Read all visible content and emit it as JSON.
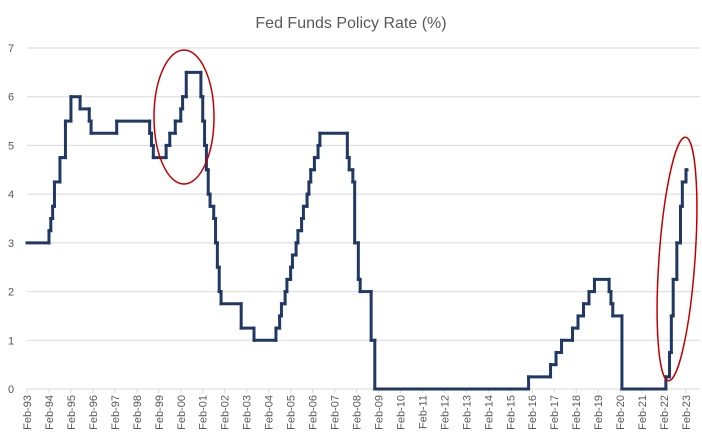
{
  "chart_data": {
    "type": "line",
    "title": "Fed Funds Policy Rate (%)",
    "step": true,
    "color": "#1f3864",
    "grid": true,
    "x": [
      "1993-02",
      "1994-02",
      "1994-03",
      "1994-04",
      "1994-05",
      "1994-08",
      "1994-11",
      "1995-02",
      "1995-07",
      "1995-12",
      "1996-01",
      "1997-03",
      "1998-09",
      "1998-10",
      "1998-11",
      "1999-06",
      "1999-08",
      "1999-11",
      "2000-02",
      "2000-03",
      "2000-05",
      "2001-01",
      "2001-02",
      "2001-03",
      "2001-04",
      "2001-05",
      "2001-06",
      "2001-08",
      "2001-09",
      "2001-10",
      "2001-11",
      "2001-12",
      "2002-11",
      "2003-06",
      "2004-06",
      "2004-08",
      "2004-09",
      "2004-11",
      "2004-12",
      "2005-02",
      "2005-03",
      "2005-05",
      "2005-06",
      "2005-08",
      "2005-09",
      "2005-11",
      "2005-12",
      "2006-01",
      "2006-03",
      "2006-05",
      "2006-06",
      "2007-09",
      "2007-10",
      "2007-12",
      "2008-01",
      "2008-03",
      "2008-04",
      "2008-10",
      "2008-12",
      "2015-12",
      "2016-12",
      "2017-03",
      "2017-06",
      "2017-12",
      "2018-03",
      "2018-06",
      "2018-09",
      "2018-12",
      "2019-08",
      "2019-09",
      "2019-10",
      "2020-03",
      "2022-03",
      "2022-05",
      "2022-06",
      "2022-07",
      "2022-09",
      "2022-11",
      "2022-12",
      "2023-02"
    ],
    "values": [
      3.0,
      3.25,
      3.5,
      3.75,
      4.25,
      4.75,
      5.5,
      6.0,
      5.75,
      5.5,
      5.25,
      5.5,
      5.25,
      5.0,
      4.75,
      5.0,
      5.25,
      5.5,
      5.75,
      6.0,
      6.5,
      6.0,
      5.5,
      5.0,
      4.5,
      4.0,
      3.75,
      3.5,
      3.0,
      2.5,
      2.0,
      1.75,
      1.25,
      1.0,
      1.25,
      1.5,
      1.75,
      2.0,
      2.25,
      2.5,
      2.75,
      3.0,
      3.25,
      3.5,
      3.75,
      4.0,
      4.25,
      4.5,
      4.75,
      5.0,
      5.25,
      4.75,
      4.5,
      4.25,
      3.0,
      2.25,
      2.0,
      1.0,
      0,
      0.25,
      0.5,
      0.75,
      1.0,
      1.25,
      1.5,
      1.75,
      2.0,
      2.25,
      2.0,
      1.75,
      1.5,
      0,
      0.25,
      0.75,
      1.5,
      2.25,
      3.0,
      3.75,
      4.25,
      4.5
    ],
    "xlim": [
      "1993-02",
      "2023-02"
    ],
    "xticks": [
      {
        "value": "1993-02",
        "label": "Feb-93"
      },
      {
        "value": "1994-02",
        "label": "Feb-94"
      },
      {
        "value": "1995-02",
        "label": "Feb-95"
      },
      {
        "value": "1996-02",
        "label": "Feb-96"
      },
      {
        "value": "1997-02",
        "label": "Feb-97"
      },
      {
        "value": "1998-02",
        "label": "Feb-98"
      },
      {
        "value": "1999-02",
        "label": "Feb-99"
      },
      {
        "value": "2000-02",
        "label": "Feb-00"
      },
      {
        "value": "2001-02",
        "label": "Feb-01"
      },
      {
        "value": "2002-02",
        "label": "Feb-02"
      },
      {
        "value": "2003-02",
        "label": "Feb-03"
      },
      {
        "value": "2004-02",
        "label": "Feb-04"
      },
      {
        "value": "2005-02",
        "label": "Feb-05"
      },
      {
        "value": "2006-02",
        "label": "Feb-06"
      },
      {
        "value": "2007-02",
        "label": "Feb-07"
      },
      {
        "value": "2008-02",
        "label": "Feb-08"
      },
      {
        "value": "2009-02",
        "label": "Feb-09"
      },
      {
        "value": "2010-02",
        "label": "Feb-10"
      },
      {
        "value": "2011-02",
        "label": "Feb-11"
      },
      {
        "value": "2012-02",
        "label": "Feb-12"
      },
      {
        "value": "2013-02",
        "label": "Feb-13"
      },
      {
        "value": "2014-02",
        "label": "Feb-14"
      },
      {
        "value": "2015-02",
        "label": "Feb-15"
      },
      {
        "value": "2016-02",
        "label": "Feb-16"
      },
      {
        "value": "2017-02",
        "label": "Feb-17"
      },
      {
        "value": "2018-02",
        "label": "Feb-18"
      },
      {
        "value": "2019-02",
        "label": "Feb-19"
      },
      {
        "value": "2020-02",
        "label": "Feb-20"
      },
      {
        "value": "2021-02",
        "label": "Feb-21"
      },
      {
        "value": "2022-02",
        "label": "Feb-22"
      },
      {
        "value": "2023-02",
        "label": "Feb-23"
      }
    ],
    "ylim": [
      0,
      7
    ],
    "yticks": [
      0,
      1,
      2,
      3,
      4,
      5,
      6,
      7
    ]
  }
}
